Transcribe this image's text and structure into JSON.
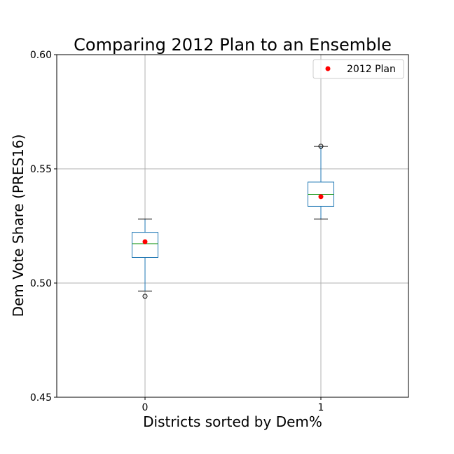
{
  "chart_data": {
    "type": "box",
    "title": "Comparing 2012 Plan to an Ensemble",
    "xlabel": "Districts sorted by Dem%",
    "ylabel": "Dem Vote Share (PRES16)",
    "ylim": [
      0.45,
      0.6
    ],
    "yticks": [
      "0.45",
      "0.50",
      "0.55",
      "0.60"
    ],
    "categories": [
      "0",
      "1"
    ],
    "grid": true,
    "legend": {
      "position": "top-right",
      "entries": [
        {
          "label": "2012 Plan",
          "color": "#ff0000"
        }
      ]
    },
    "boxes": [
      {
        "category": "0",
        "whisker_low": 0.4965,
        "q1": 0.5112,
        "median": 0.5172,
        "q3": 0.5222,
        "whisker_high": 0.528,
        "outliers": [
          0.4942
        ]
      },
      {
        "category": "1",
        "whisker_low": 0.528,
        "q1": 0.5336,
        "median": 0.5388,
        "q3": 0.5442,
        "whisker_high": 0.5598,
        "outliers": [
          0.5599
        ]
      }
    ],
    "series": [
      {
        "name": "2012 Plan",
        "color": "#ff0000",
        "points": [
          {
            "x": "0",
            "y": 0.5181
          },
          {
            "x": "1",
            "y": 0.5378
          }
        ]
      }
    ],
    "colors": {
      "box": "#1f77b4",
      "median": "#2ca02c",
      "grid": "#b0b0b0",
      "outlier": "#000000"
    }
  }
}
